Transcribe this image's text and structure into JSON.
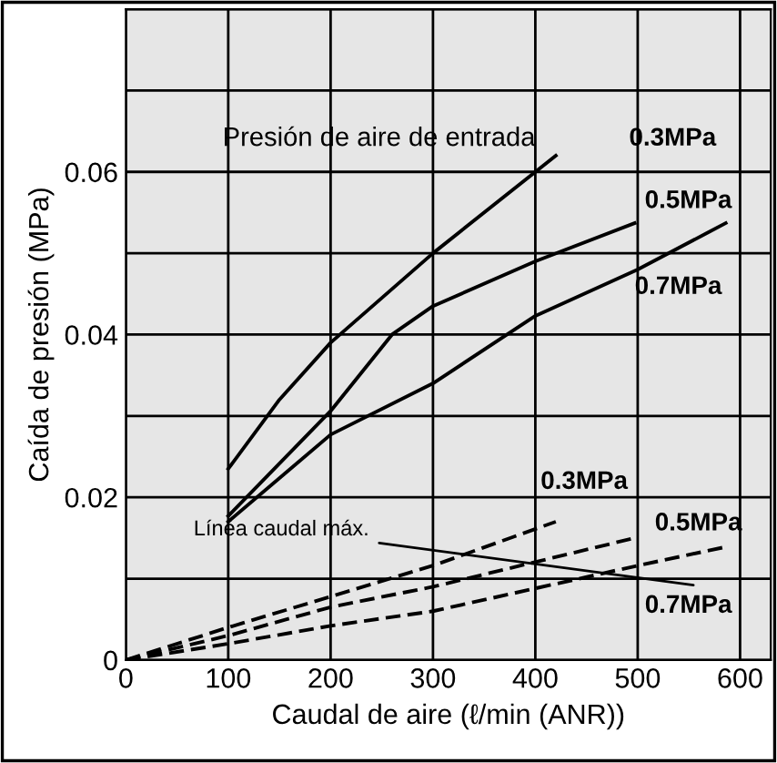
{
  "chart_data": {
    "type": "line",
    "xlabel": "Caudal de aire (ℓ/min (ANR))",
    "ylabel": "Caída de presión (MPa)",
    "xlim": [
      0,
      630
    ],
    "ylim": [
      0,
      0.08
    ],
    "xticks": [
      0,
      100,
      200,
      300,
      400,
      500,
      600
    ],
    "yticks": [
      0,
      {
        "value": 0.01,
        "label": null
      },
      0.02,
      {
        "value": 0.03,
        "label": null
      },
      0.04,
      {
        "value": 0.05,
        "label": null
      },
      0.06,
      {
        "value": 0.07,
        "label": null
      },
      {
        "value": 0.08,
        "label": null
      }
    ],
    "grid": true,
    "marker": "none",
    "series": [
      {
        "name": "0.3MPa",
        "color": "#000000",
        "line_style": "solid",
        "x": [
          100,
          150,
          200,
          300,
          420
        ],
        "values": [
          0.0235,
          0.032,
          0.039,
          0.05,
          0.062
        ]
      },
      {
        "name": "0.5MPa",
        "color": "#000000",
        "line_style": "solid",
        "x": [
          100,
          200,
          260,
          300,
          400,
          497
        ],
        "values": [
          0.0177,
          0.0306,
          0.04,
          0.0435,
          0.049,
          0.0537
        ]
      },
      {
        "name": "0.7MPa",
        "color": "#000000",
        "line_style": "solid",
        "x": [
          100,
          200,
          300,
          400,
          500,
          586
        ],
        "values": [
          0.017,
          0.0277,
          0.034,
          0.0423,
          0.048,
          0.0537
        ]
      },
      {
        "name": "0.3MPa",
        "color": "#000000",
        "line_style": "dashed",
        "x": [
          0,
          100,
          200,
          300,
          420
        ],
        "values": [
          0,
          0.004,
          0.0078,
          0.0116,
          0.017
        ]
      },
      {
        "name": "0.5MPa",
        "color": "#000000",
        "line_style": "dashed",
        "x": [
          0,
          100,
          200,
          300,
          497
        ],
        "values": [
          0,
          0.003,
          0.0065,
          0.009,
          0.015
        ]
      },
      {
        "name": "0.7MPa",
        "color": "#000000",
        "line_style": "dashed",
        "x": [
          0,
          100,
          200,
          300,
          500,
          586
        ],
        "values": [
          0,
          0.002,
          0.0042,
          0.006,
          0.0116,
          0.0139
        ]
      }
    ],
    "annotations": [
      "Presión de aire de entrada",
      "Línea caudal máx."
    ]
  }
}
